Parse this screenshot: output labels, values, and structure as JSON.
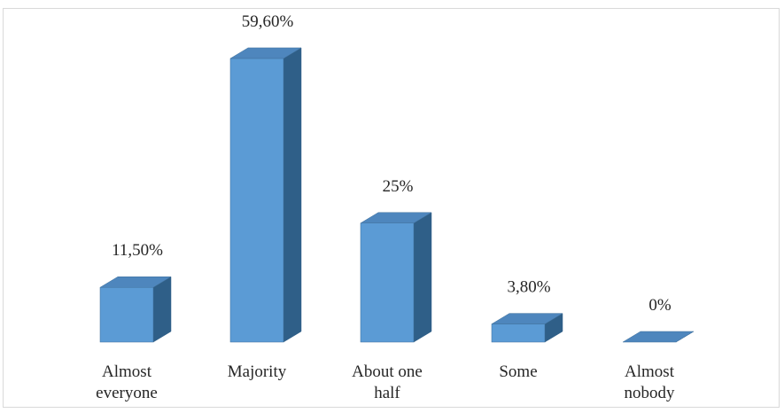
{
  "chart_data": {
    "type": "bar",
    "title": "",
    "xlabel": "",
    "ylabel": "",
    "categories": [
      [
        "Almost",
        "everyone"
      ],
      [
        "Majority"
      ],
      [
        "About one",
        "half"
      ],
      [
        "Some"
      ],
      [
        "Almost",
        "nobody"
      ]
    ],
    "values": [
      11.5,
      59.6,
      25,
      3.8,
      0
    ],
    "data_labels": [
      "11,50%",
      "59,60%",
      "25%",
      "3,80%",
      "0%"
    ],
    "ylim": [
      0,
      60
    ],
    "grid": false,
    "legend": "none",
    "three_d": true,
    "colors": {
      "front": "#5b9bd5",
      "top": "#4e86bd",
      "side": "#2f5f88",
      "outline": "#41719c"
    }
  }
}
